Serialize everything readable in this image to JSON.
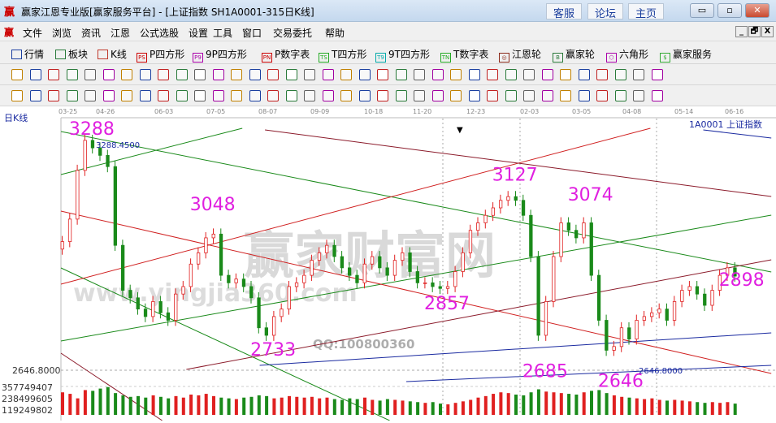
{
  "window": {
    "logo": "赢",
    "title": "赢家江恩专业版[赢家服务平台] - [上证指数  SH1A0001-315日K线]",
    "buttons": [
      "客服",
      "论坛",
      "主页"
    ],
    "controls": [
      "minimize",
      "maximize",
      "close"
    ]
  },
  "menu": {
    "items": [
      "文件",
      "浏览",
      "资讯",
      "江恩",
      "公式选股",
      "设置",
      "工具",
      "窗口",
      "交易委托",
      "帮助"
    ],
    "mdi": [
      "_",
      "🗗",
      "X"
    ]
  },
  "toolbar": {
    "items": [
      {
        "label": "行情",
        "icon": "quote-table-icon",
        "tag": "",
        "color": "#1b3fa0"
      },
      {
        "label": "板块",
        "icon": "sector-icon",
        "tag": "",
        "color": "#2a7a3a"
      },
      {
        "label": "K线",
        "icon": "kline-icon",
        "tag": "",
        "color": "#c0392b"
      },
      {
        "label": "P四方形",
        "icon": "p-square-icon",
        "tag": "PS",
        "color": "#c00"
      },
      {
        "label": "9P四方形",
        "icon": "9p-square-icon",
        "tag": "P9",
        "color": "#a0a"
      },
      {
        "label": "P数字表",
        "icon": "p-number-table-icon",
        "tag": "PN",
        "color": "#c00"
      },
      {
        "label": "T四方形",
        "icon": "t-square-icon",
        "tag": "TS",
        "color": "#2a2"
      },
      {
        "label": "9T四方形",
        "icon": "9t-square-icon",
        "tag": "T9",
        "color": "#0aa"
      },
      {
        "label": "T数字表",
        "icon": "t-number-table-icon",
        "tag": "TN",
        "color": "#2a2"
      },
      {
        "label": "江恩轮",
        "icon": "gann-wheel-icon",
        "tag": "◎",
        "color": "#8b2a1a"
      },
      {
        "label": "赢家轮",
        "icon": "winner-wheel-icon",
        "tag": "B",
        "color": "#2a7a3a"
      },
      {
        "label": "六角形",
        "icon": "hexagon-icon",
        "tag": "⬡",
        "color": "#a0a"
      },
      {
        "label": "赢家服务",
        "icon": "dollar-icon",
        "tag": "$",
        "color": "#3a3"
      }
    ]
  },
  "chart": {
    "period_label": "日K线",
    "symbol_label": "1A0001 上证指数",
    "dates": [
      "03-25",
      "04-26",
      "06-03",
      "07-05",
      "08-07",
      "09-09",
      "10-18",
      "11-20",
      "12-23",
      "02-03",
      "03-05",
      "04-08",
      "05-14",
      "06-16"
    ],
    "price_label_top": "3288.4500",
    "price_label_bottom": "2646.8000",
    "axis_price": "2646.8000",
    "volume_ticks": [
      "357749407",
      "238499605",
      "119249802"
    ],
    "annotations": [
      {
        "text": "3288",
        "i": 3,
        "p": 3288
      },
      {
        "text": "3048",
        "i": 19,
        "p": 3048
      },
      {
        "text": "2733",
        "i": 27,
        "p": 2733
      },
      {
        "text": "2857",
        "i": 50,
        "p": 2857
      },
      {
        "text": "3127",
        "i": 59,
        "p": 3127
      },
      {
        "text": "2685",
        "i": 63,
        "p": 2685
      },
      {
        "text": "3074",
        "i": 69,
        "p": 3074
      },
      {
        "text": "2646",
        "i": 73,
        "p": 2646
      },
      {
        "text": "2898",
        "i": 89,
        "p": 2898
      }
    ],
    "watermark": "赢家财富网",
    "watermark_url": "www.yingjia360.com",
    "watermark_qq": "QQ:100800360",
    "colors": {
      "up": "#e02020",
      "down": "#1a8a1a",
      "annotation": "#e020e0"
    }
  },
  "chart_data": {
    "type": "candlestick",
    "ylim": [
      2500,
      3300
    ],
    "close": [
      2990,
      3050,
      3180,
      3260,
      3240,
      3220,
      3190,
      2980,
      2860,
      2840,
      2810,
      2790,
      2830,
      2800,
      2780,
      2850,
      2870,
      2930,
      2960,
      3000,
      3010,
      2900,
      2880,
      2890,
      2870,
      2840,
      2760,
      2740,
      2790,
      2810,
      2870,
      2880,
      2900,
      2940,
      2960,
      2980,
      2950,
      2920,
      2900,
      2880,
      2930,
      2950,
      2920,
      2900,
      2940,
      2960,
      2910,
      2880,
      2880,
      2870,
      2865,
      2870,
      2910,
      2960,
      3020,
      3040,
      3060,
      3080,
      3100,
      3110,
      3100,
      3060,
      2950,
      2740,
      2830,
      2950,
      3040,
      3020,
      3000,
      3040,
      2900,
      2780,
      2700,
      2710,
      2760,
      2730,
      2780,
      2790,
      2800,
      2810,
      2780,
      2830,
      2860,
      2870,
      2850,
      2820,
      2860,
      2900,
      2920,
      2898
    ],
    "volume_millions": [
      300,
      280,
      220,
      330,
      320,
      350,
      370,
      290,
      260,
      240,
      250,
      230,
      260,
      240,
      220,
      250,
      230,
      270,
      260,
      280,
      250,
      230,
      220,
      210,
      230,
      240,
      260,
      250,
      220,
      230,
      250,
      240,
      230,
      240,
      220,
      230,
      210,
      200,
      220,
      210,
      230,
      200,
      190,
      210,
      200,
      190,
      180,
      170,
      160,
      170,
      150,
      140,
      160,
      180,
      200,
      230,
      250,
      280,
      300,
      290,
      270,
      260,
      300,
      340,
      310,
      300,
      290,
      280,
      270,
      300,
      320,
      330,
      290,
      260,
      240,
      230,
      220,
      210,
      220,
      200,
      190,
      200,
      190,
      180,
      170,
      160,
      170,
      160,
      170,
      150
    ],
    "trend_lines": [
      {
        "color": "#1a8a1a",
        "from": [
          0,
          2724.8
        ],
        "to": [
          94,
          3060.5
        ]
      },
      {
        "color": "#1a8a1a",
        "from": [
          0,
          3283.6
        ],
        "to": [
          94,
          2908.9
        ]
      },
      {
        "color": "#1a8a1a",
        "from": [
          0,
          2919.7
        ],
        "to": [
          43.5,
          2512.5
        ]
      },
      {
        "color": "#1a8a1a",
        "from": [
          0,
          3168.8
        ],
        "to": [
          24,
          3292.3
        ]
      },
      {
        "color": "#d02020",
        "from": [
          0,
          3071.3
        ],
        "to": [
          94,
          2638.1
        ]
      },
      {
        "color": "#d02020",
        "from": [
          0,
          2876.4
        ],
        "to": [
          78,
          3292.3
        ]
      },
      {
        "color": "#8b1a2a",
        "from": [
          27,
          3287.9
        ],
        "to": [
          94,
          3110.3
        ]
      },
      {
        "color": "#8b1a2a",
        "from": [
          16.6,
          2649
        ],
        "to": [
          94,
          2941.4
        ]
      },
      {
        "color": "#8b1a2a",
        "from": [
          0,
          2692.3
        ],
        "to": [
          13.4,
          2512.5
        ]
      },
      {
        "color": "#1a2aa0",
        "from": [
          26.3,
          2659.8
        ],
        "to": [
          94,
          2746.4
        ]
      },
      {
        "color": "#1a2aa0",
        "from": [
          45.7,
          2616.5
        ],
        "to": [
          94,
          2659.8
        ]
      },
      {
        "color": "#1a2aa0",
        "from": [
          85,
          3287.9
        ],
        "to": [
          94,
          3266.3
        ]
      }
    ]
  }
}
